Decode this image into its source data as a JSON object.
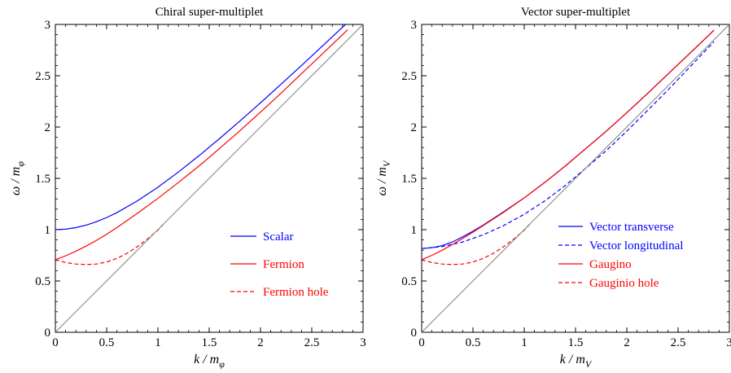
{
  "chart_data": [
    {
      "type": "line",
      "title": "Chiral super-multiplet",
      "xlabel": "k / m",
      "xlabel_sub": "φ",
      "ylabel": "ω / m",
      "ylabel_sub": "φ",
      "xlim": [
        0,
        3
      ],
      "ylim": [
        0,
        3
      ],
      "xticks": [
        "0",
        "0.5",
        "1",
        "1.5",
        "2",
        "2.5",
        "3"
      ],
      "yticks": [
        "0",
        "0.5",
        "1",
        "1.5",
        "2",
        "2.5",
        "3"
      ],
      "grid": false,
      "legend_position": "bottom-right",
      "series": [
        {
          "name": "Scalar",
          "color": "#0000ff",
          "dash": "solid",
          "x": [
            0,
            0.1,
            0.2,
            0.3,
            0.4,
            0.5,
            0.6,
            0.8,
            1.0,
            1.2,
            1.4,
            1.6,
            1.8,
            2.0,
            2.2,
            2.4,
            2.6,
            2.8,
            2.85
          ],
          "y": [
            1.0,
            1.005,
            1.02,
            1.044,
            1.077,
            1.118,
            1.166,
            1.281,
            1.414,
            1.562,
            1.72,
            1.887,
            2.059,
            2.236,
            2.417,
            2.6,
            2.786,
            2.973,
            3.02
          ]
        },
        {
          "name": "Fermion",
          "color": "#ff0000",
          "dash": "solid",
          "x": [
            0,
            0.1,
            0.2,
            0.3,
            0.4,
            0.5,
            0.6,
            0.8,
            1.0,
            1.2,
            1.4,
            1.6,
            1.8,
            2.0,
            2.2,
            2.4,
            2.6,
            2.8,
            2.85
          ],
          "y": [
            0.707,
            0.745,
            0.79,
            0.84,
            0.895,
            0.955,
            1.02,
            1.16,
            1.305,
            1.46,
            1.62,
            1.79,
            1.965,
            2.145,
            2.33,
            2.52,
            2.71,
            2.9,
            2.95
          ]
        },
        {
          "name": "Fermion hole",
          "color": "#ff0000",
          "dash": "dashed",
          "x": [
            0,
            0.1,
            0.2,
            0.3,
            0.4,
            0.5,
            0.6,
            0.7,
            0.8,
            0.9,
            1.0,
            1.05
          ],
          "y": [
            0.707,
            0.68,
            0.665,
            0.66,
            0.665,
            0.685,
            0.72,
            0.77,
            0.835,
            0.91,
            0.995,
            1.05
          ]
        },
        {
          "name": "",
          "color": "#808080",
          "dash": "solid",
          "x": [
            0,
            3
          ],
          "y": [
            0,
            3
          ]
        }
      ]
    },
    {
      "type": "line",
      "title": "Vector super-multiplet",
      "xlabel": "k / m",
      "xlabel_sub": "V",
      "ylabel": "ω / m",
      "ylabel_sub": "V",
      "xlim": [
        0,
        3
      ],
      "ylim": [
        0,
        3
      ],
      "xticks": [
        "0",
        "0.5",
        "1",
        "1.5",
        "2",
        "2.5",
        "3"
      ],
      "yticks": [
        "0",
        "0.5",
        "1",
        "1.5",
        "2",
        "2.5",
        "3"
      ],
      "grid": false,
      "legend_position": "bottom-right",
      "series": [
        {
          "name": "Vector transverse",
          "color": "#0000ff",
          "dash": "solid",
          "x": [
            0,
            0.1,
            0.2,
            0.3,
            0.4,
            0.5,
            0.6,
            0.8,
            1.0,
            1.2,
            1.4,
            1.6,
            1.8,
            2.0,
            2.2,
            2.4,
            2.6,
            2.8,
            2.85
          ],
          "y": [
            0.816,
            0.824,
            0.845,
            0.88,
            0.93,
            0.985,
            1.045,
            1.175,
            1.31,
            1.46,
            1.62,
            1.79,
            1.96,
            2.14,
            2.325,
            2.515,
            2.705,
            2.895,
            2.945
          ]
        },
        {
          "name": "Vector longitudinal",
          "color": "#0000ff",
          "dash": "dashed",
          "x": [
            0,
            0.2,
            0.4,
            0.6,
            0.8,
            1.0,
            1.2,
            1.4,
            1.6,
            1.8,
            2.0,
            2.2,
            2.4,
            2.6,
            2.8,
            2.85
          ],
          "y": [
            0.816,
            0.835,
            0.88,
            0.95,
            1.04,
            1.15,
            1.28,
            1.43,
            1.6,
            1.77,
            1.96,
            2.16,
            2.36,
            2.57,
            2.78,
            2.83
          ]
        },
        {
          "name": "Gaugino",
          "color": "#ff0000",
          "dash": "solid",
          "x": [
            0,
            0.1,
            0.2,
            0.3,
            0.4,
            0.5,
            0.6,
            0.8,
            1.0,
            1.2,
            1.4,
            1.6,
            1.8,
            2.0,
            2.2,
            2.4,
            2.6,
            2.8,
            2.85
          ],
          "y": [
            0.707,
            0.75,
            0.8,
            0.855,
            0.915,
            0.975,
            1.04,
            1.17,
            1.31,
            1.46,
            1.62,
            1.79,
            1.96,
            2.14,
            2.325,
            2.515,
            2.705,
            2.895,
            2.945
          ]
        },
        {
          "name": "Gauginio hole",
          "color": "#ff0000",
          "dash": "dashed",
          "x": [
            0,
            0.1,
            0.2,
            0.3,
            0.4,
            0.5,
            0.6,
            0.7,
            0.8,
            0.9,
            1.0,
            1.05
          ],
          "y": [
            0.707,
            0.68,
            0.665,
            0.66,
            0.665,
            0.685,
            0.72,
            0.77,
            0.835,
            0.91,
            0.995,
            1.05
          ]
        },
        {
          "name": "",
          "color": "#808080",
          "dash": "solid",
          "x": [
            0,
            3
          ],
          "y": [
            0,
            3
          ]
        }
      ]
    }
  ]
}
